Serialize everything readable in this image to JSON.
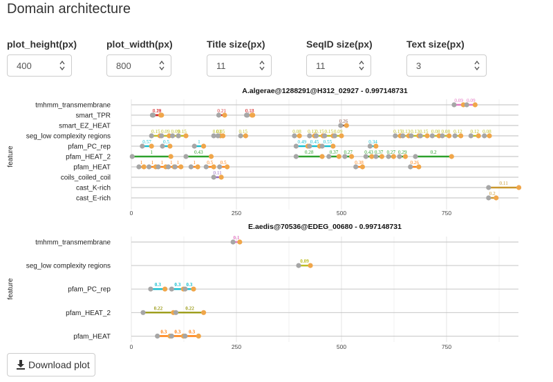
{
  "page": {
    "title": "Domain architecture"
  },
  "controls": [
    {
      "label": "plot_height(px)",
      "value": "400"
    },
    {
      "label": "plot_width(px)",
      "value": "800"
    },
    {
      "label": "Title size(px)",
      "value": "11"
    },
    {
      "label": "SeqID size(px)",
      "value": "11"
    },
    {
      "label": "Text size(px)",
      "value": "3"
    }
  ],
  "download": {
    "label": "Download plot"
  },
  "chart_data": [
    {
      "type": "dumbbell",
      "title": "A.algerae@1288291@H312_02927 - 0.997148731",
      "ylabel": "feature",
      "xlabel": "",
      "xlim": [
        0,
        930
      ],
      "xticks": [
        "0",
        "250",
        "500",
        "750"
      ],
      "xtick_values": [
        0,
        250,
        500,
        750
      ],
      "categories": [
        "tmhmm_transmembrane",
        "smart_TPR",
        "smart_EZ_HEAT",
        "seg_low complexity regions",
        "pfam_PC_rep",
        "pfam_HEAT_2",
        "pfam_HEAT",
        "coils_coiled_coil",
        "cast_K-rich",
        "cast_E-rich"
      ],
      "segments": [
        {
          "cat": "tmhmm_transmembrane",
          "start": 768,
          "end": 790,
          "label": "0.09",
          "color": "#e377c2"
        },
        {
          "cat": "tmhmm_transmembrane",
          "start": 798,
          "end": 818,
          "label": "0.09",
          "color": "#e377c2"
        },
        {
          "cat": "smart_TPR",
          "start": 50,
          "end": 72,
          "label": "0.28",
          "color": "#d62728"
        },
        {
          "cat": "smart_TPR",
          "start": 52,
          "end": 70,
          "label": "0.19",
          "color": "#d62728"
        },
        {
          "cat": "smart_TPR",
          "start": 208,
          "end": 222,
          "label": "0.21",
          "color": "#d62728"
        },
        {
          "cat": "smart_TPR",
          "start": 274,
          "end": 289,
          "label": "0.13",
          "color": "#d62728"
        },
        {
          "cat": "smart_TPR",
          "start": 276,
          "end": 287,
          "label": "0.18",
          "color": "#d62728"
        },
        {
          "cat": "smart_EZ_HEAT",
          "start": 498,
          "end": 512,
          "label": "0.26",
          "color": "#8c564b"
        },
        {
          "cat": "seg_low complexity regions",
          "start": 48,
          "end": 68,
          "label": "0.15",
          "color": "#bcbd22"
        },
        {
          "cat": "seg_low complexity regions",
          "start": 72,
          "end": 90,
          "label": "0.09",
          "color": "#bcbd22"
        },
        {
          "cat": "seg_low complexity regions",
          "start": 98,
          "end": 112,
          "label": "0.09",
          "color": "#bcbd22"
        },
        {
          "cat": "seg_low complexity regions",
          "start": 112,
          "end": 130,
          "label": "0.15",
          "color": "#bcbd22"
        },
        {
          "cat": "seg_low complexity regions",
          "start": 196,
          "end": 212,
          "label": "0.03",
          "color": "#bcbd22"
        },
        {
          "cat": "seg_low complexity regions",
          "start": 206,
          "end": 218,
          "label": "0.05",
          "color": "#bcbd22"
        },
        {
          "cat": "seg_low complexity regions",
          "start": 260,
          "end": 272,
          "label": "0.15",
          "color": "#bcbd22"
        },
        {
          "cat": "seg_low complexity regions",
          "start": 388,
          "end": 400,
          "label": "0.08",
          "color": "#bcbd22"
        },
        {
          "cat": "seg_low complexity regions",
          "start": 424,
          "end": 436,
          "label": "0.12",
          "color": "#bcbd22"
        },
        {
          "cat": "seg_low complexity regions",
          "start": 440,
          "end": 456,
          "label": "0.15",
          "color": "#bcbd22"
        },
        {
          "cat": "seg_low complexity regions",
          "start": 460,
          "end": 480,
          "label": "0.15",
          "color": "#bcbd22"
        },
        {
          "cat": "seg_low complexity regions",
          "start": 484,
          "end": 500,
          "label": "0.09",
          "color": "#bcbd22"
        },
        {
          "cat": "seg_low complexity regions",
          "start": 628,
          "end": 640,
          "label": "0.15",
          "color": "#bcbd22"
        },
        {
          "cat": "seg_low complexity regions",
          "start": 646,
          "end": 660,
          "label": "0.13",
          "color": "#bcbd22"
        },
        {
          "cat": "seg_low complexity regions",
          "start": 666,
          "end": 684,
          "label": "0.13",
          "color": "#bcbd22"
        },
        {
          "cat": "seg_low complexity regions",
          "start": 688,
          "end": 704,
          "label": "0.15",
          "color": "#bcbd22"
        },
        {
          "cat": "seg_low complexity regions",
          "start": 716,
          "end": 732,
          "label": "0.08",
          "color": "#bcbd22"
        },
        {
          "cat": "seg_low complexity regions",
          "start": 740,
          "end": 756,
          "label": "0.08",
          "color": "#bcbd22"
        },
        {
          "cat": "seg_low complexity regions",
          "start": 770,
          "end": 784,
          "label": "0.12",
          "color": "#bcbd22"
        },
        {
          "cat": "seg_low complexity regions",
          "start": 808,
          "end": 826,
          "label": "0.12",
          "color": "#bcbd22"
        },
        {
          "cat": "seg_low complexity regions",
          "start": 840,
          "end": 852,
          "label": "0.08",
          "color": "#bcbd22"
        },
        {
          "cat": "pfam_PC_rep",
          "start": 26,
          "end": 48,
          "label": "0.57",
          "color": "#17becf"
        },
        {
          "cat": "pfam_PC_rep",
          "start": 74,
          "end": 92,
          "label": "0.5",
          "color": "#17becf"
        },
        {
          "cat": "pfam_PC_rep",
          "start": 150,
          "end": 172,
          "label": "1",
          "color": "#17becf"
        },
        {
          "cat": "pfam_PC_rep",
          "start": 392,
          "end": 420,
          "label": "0.49",
          "color": "#17becf"
        },
        {
          "cat": "pfam_PC_rep",
          "start": 424,
          "end": 448,
          "label": "0.45",
          "color": "#17becf"
        },
        {
          "cat": "pfam_PC_rep",
          "start": 454,
          "end": 480,
          "label": "0.55",
          "color": "#17becf"
        },
        {
          "cat": "pfam_PC_rep",
          "start": 568,
          "end": 582,
          "label": "0.34",
          "color": "#17becf"
        },
        {
          "cat": "pfam_HEAT_2",
          "start": 2,
          "end": 94,
          "label": "1",
          "color": "#2ca02c"
        },
        {
          "cat": "pfam_HEAT_2",
          "start": 130,
          "end": 190,
          "label": "0.43",
          "color": "#2ca02c"
        },
        {
          "cat": "pfam_HEAT_2",
          "start": 392,
          "end": 454,
          "label": "0.28",
          "color": "#2ca02c"
        },
        {
          "cat": "pfam_HEAT_2",
          "start": 470,
          "end": 494,
          "label": "0.37",
          "color": "#2ca02c"
        },
        {
          "cat": "pfam_HEAT_2",
          "start": 508,
          "end": 524,
          "label": "0.27",
          "color": "#2ca02c"
        },
        {
          "cat": "pfam_HEAT_2",
          "start": 558,
          "end": 572,
          "label": "0.43",
          "color": "#2ca02c"
        },
        {
          "cat": "pfam_HEAT_2",
          "start": 582,
          "end": 596,
          "label": "0.37",
          "color": "#2ca02c"
        },
        {
          "cat": "pfam_HEAT_2",
          "start": 612,
          "end": 624,
          "label": "0.27",
          "color": "#2ca02c"
        },
        {
          "cat": "pfam_HEAT_2",
          "start": 638,
          "end": 652,
          "label": "0.29",
          "color": "#2ca02c"
        },
        {
          "cat": "pfam_HEAT_2",
          "start": 676,
          "end": 762,
          "label": "0.2",
          "color": "#2ca02c"
        },
        {
          "cat": "pfam_HEAT",
          "start": 18,
          "end": 30,
          "label": "1",
          "color": "#ff7f0e"
        },
        {
          "cat": "pfam_HEAT",
          "start": 42,
          "end": 58,
          "label": "1",
          "color": "#ff7f0e"
        },
        {
          "cat": "pfam_HEAT",
          "start": 64,
          "end": 82,
          "label": "1",
          "color": "#ff7f0e"
        },
        {
          "cat": "pfam_HEAT",
          "start": 88,
          "end": 102,
          "label": "1",
          "color": "#ff7f0e"
        },
        {
          "cat": "pfam_HEAT",
          "start": 104,
          "end": 118,
          "label": "1",
          "color": "#ff7f0e"
        },
        {
          "cat": "pfam_HEAT",
          "start": 142,
          "end": 158,
          "label": "1",
          "color": "#ff7f0e"
        },
        {
          "cat": "pfam_HEAT",
          "start": 178,
          "end": 196,
          "label": "0.5",
          "color": "#ff7f0e"
        },
        {
          "cat": "pfam_HEAT",
          "start": 210,
          "end": 228,
          "label": "0.5",
          "color": "#ff7f0e"
        },
        {
          "cat": "pfam_HEAT",
          "start": 534,
          "end": 550,
          "label": "0.38",
          "color": "#ff7f0e"
        },
        {
          "cat": "pfam_HEAT",
          "start": 664,
          "end": 684,
          "label": "0.26",
          "color": "#ff7f0e"
        },
        {
          "cat": "coils_coiled_coil",
          "start": 196,
          "end": 214,
          "label": "0.11",
          "color": "#9467bd"
        },
        {
          "cat": "cast_K-rich",
          "start": 850,
          "end": 922,
          "label": "0.11",
          "color": "#c8962d"
        },
        {
          "cat": "cast_E-rich",
          "start": 850,
          "end": 868,
          "label": "0.2",
          "color": "#c8962d"
        }
      ]
    },
    {
      "type": "dumbbell",
      "title": "E.aedis@70536@EDEG_00680 - 0.997148731",
      "ylabel": "feature",
      "xlabel": "",
      "xlim": [
        0,
        930
      ],
      "xticks": [
        "0",
        "250",
        "500",
        "750"
      ],
      "xtick_values": [
        0,
        250,
        500,
        750
      ],
      "categories": [
        "tmhmm_transmembrane",
        "seg_low complexity regions",
        "pfam_PC_rep",
        "pfam_HEAT_2",
        "pfam_HEAT"
      ],
      "segments": [
        {
          "cat": "tmhmm_transmembrane",
          "start": 242,
          "end": 258,
          "label": "0.1",
          "color": "#e377c2"
        },
        {
          "cat": "seg_low complexity regions",
          "start": 398,
          "end": 426,
          "label": "0.09",
          "color": "#bcbd22"
        },
        {
          "cat": "pfam_PC_rep",
          "start": 46,
          "end": 80,
          "label": "0.3",
          "color": "#17becf"
        },
        {
          "cat": "pfam_PC_rep",
          "start": 96,
          "end": 124,
          "label": "0.3",
          "color": "#17becf"
        },
        {
          "cat": "pfam_PC_rep",
          "start": 128,
          "end": 148,
          "label": "0.3",
          "color": "#17becf"
        },
        {
          "cat": "pfam_HEAT_2",
          "start": 28,
          "end": 100,
          "label": "0.22",
          "color": "#9e9e1e"
        },
        {
          "cat": "pfam_HEAT_2",
          "start": 106,
          "end": 172,
          "label": "0.22",
          "color": "#9e9e1e"
        },
        {
          "cat": "pfam_HEAT",
          "start": 62,
          "end": 92,
          "label": "0.3",
          "color": "#ff7f0e"
        },
        {
          "cat": "pfam_HEAT",
          "start": 96,
          "end": 124,
          "label": "0.3",
          "color": "#ff7f0e"
        },
        {
          "cat": "pfam_HEAT",
          "start": 128,
          "end": 160,
          "label": "0.3",
          "color": "#ff7f0e"
        }
      ]
    }
  ]
}
